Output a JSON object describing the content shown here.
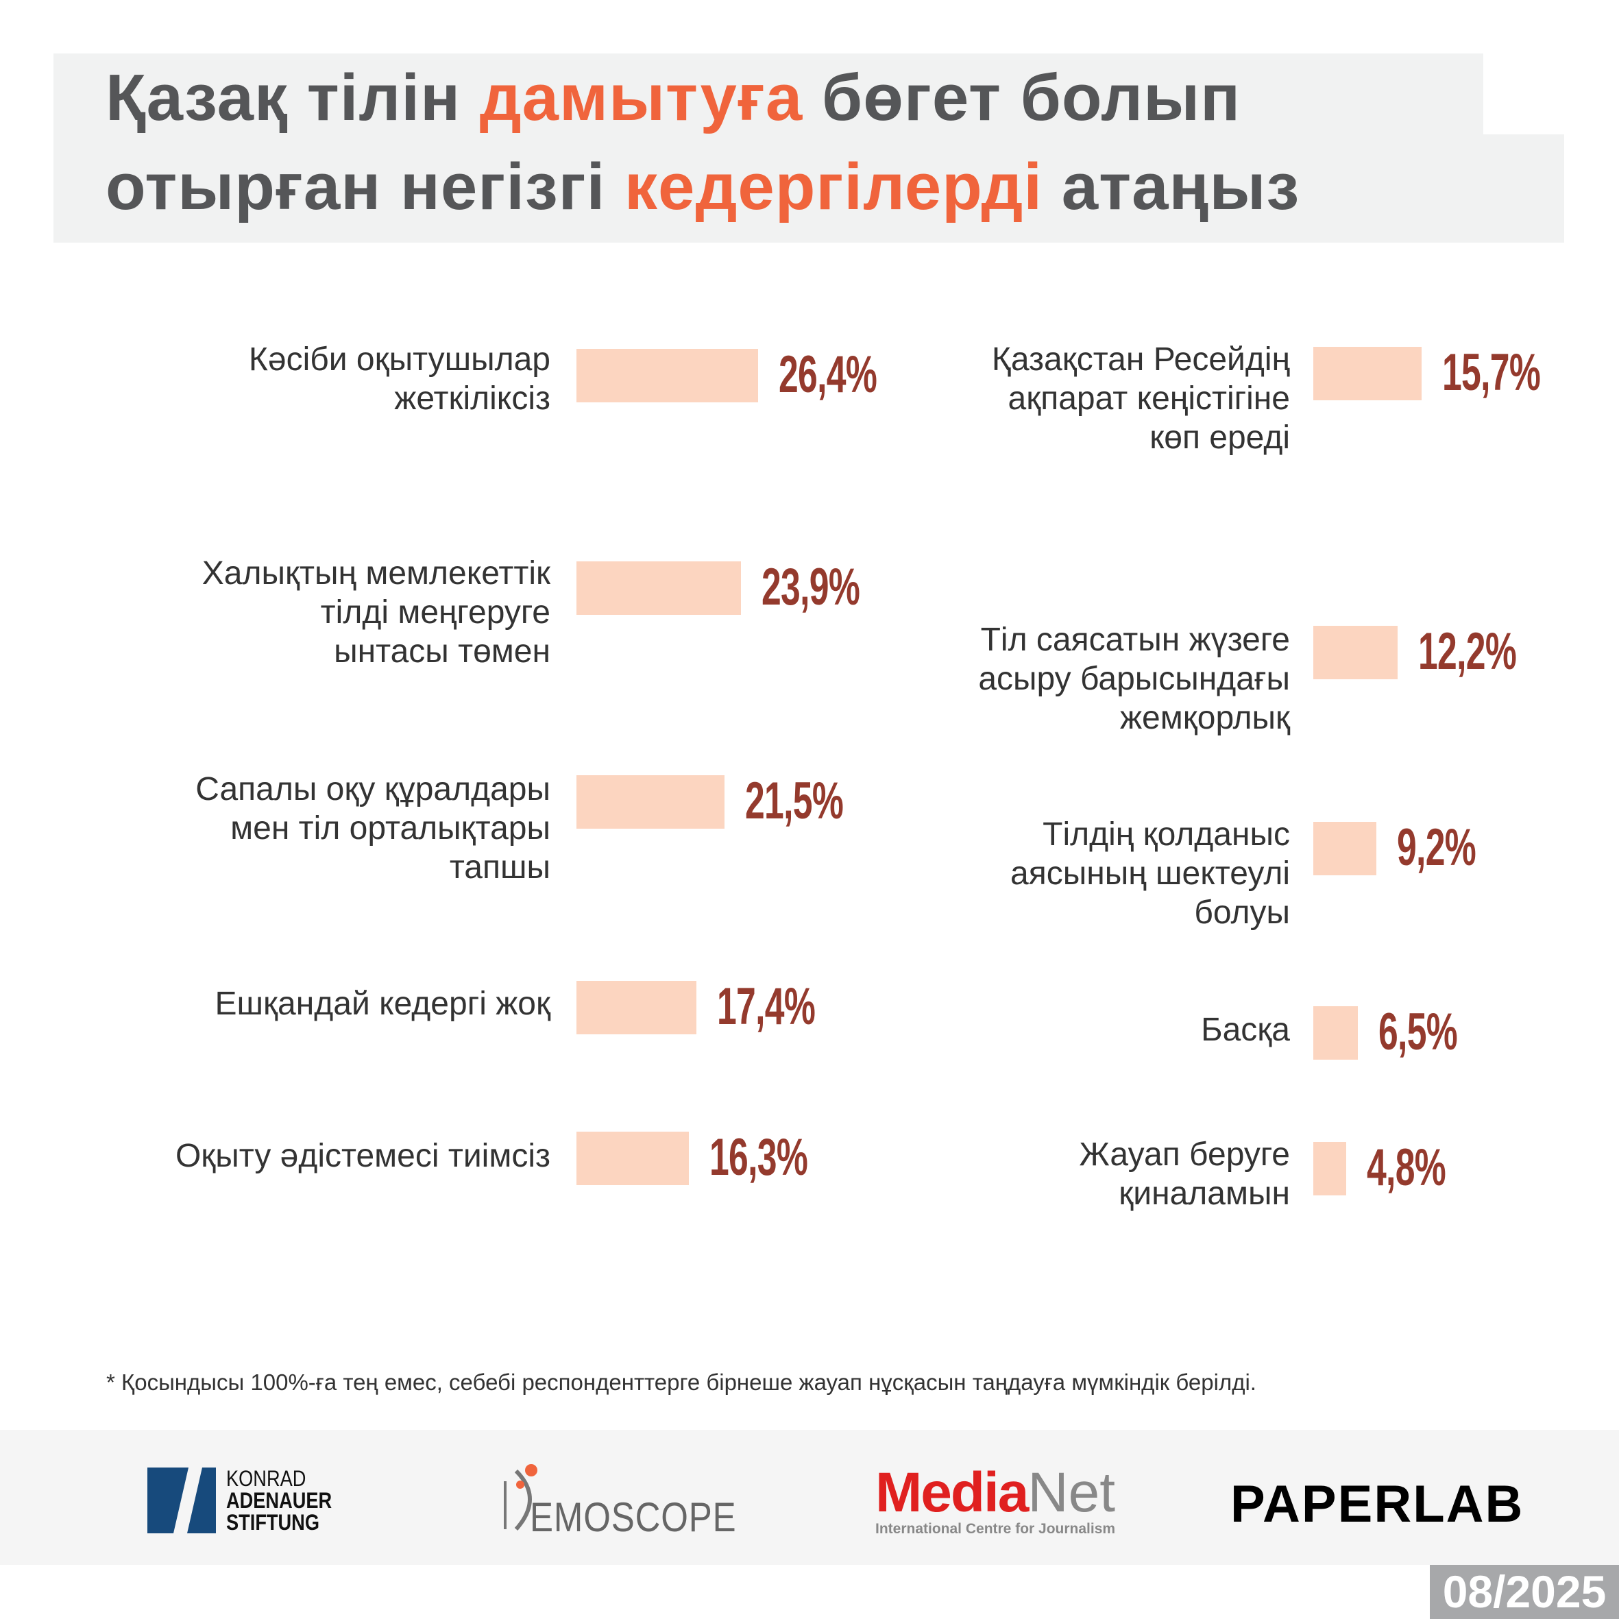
{
  "title": {
    "line1_a": "Қазақ тілін ",
    "line1_hl": "дамытуға",
    "line1_b": " бөгет болып",
    "line2_a": "отырған негізгі ",
    "line2_hl": "кедергілерді",
    "line2_b": " атаңыз"
  },
  "chart_data": {
    "type": "bar",
    "title": "Қазақ тілін дамытуға бөгет болып отырған негізгі кедергілерді атаңыз",
    "unit": "%",
    "left": [
      {
        "label": "Кәсіби оқытушылар\nжеткіліксіз",
        "value": 26.4,
        "display": "26,4%"
      },
      {
        "label": "Халықтың мемлекеттік\nтілді меңгеруге\nынтасы төмен",
        "value": 23.9,
        "display": "23,9%"
      },
      {
        "label": "Сапалы оқу құралдары\nмен тіл орталықтары\nтапшы",
        "value": 21.5,
        "display": "21,5%"
      },
      {
        "label": "Ешқандай кедергі жоқ",
        "value": 17.4,
        "display": "17,4%"
      },
      {
        "label": "Оқыту әдістемесі тиімсіз",
        "value": 16.3,
        "display": "16,3%"
      }
    ],
    "right": [
      {
        "label": "Қазақстан Ресейдің\nақпарат кеңістігіне\nкөп ереді",
        "value": 15.7,
        "display": "15,7%"
      },
      {
        "label": "Тіл саясатын жүзеге\nасыру барысындағы\nжемқорлық",
        "value": 12.2,
        "display": "12,2%"
      },
      {
        "label": "Тілдің қолданыс\nаясының шектеулі\nболуы",
        "value": 9.2,
        "display": "9,2%"
      },
      {
        "label": "Басқа",
        "value": 6.5,
        "display": "6,5%"
      },
      {
        "label": "Жауап беруге\nқиналамын",
        "value": 4.8,
        "display": "4,8%"
      }
    ],
    "colors": {
      "bar": "#fcd5c0",
      "value": "#943a2d"
    }
  },
  "footnote": "* Қосындысы 100%-ға тең емес, себебі респонденттерге бірнеше жауап нұсқасын таңдауға мүмкіндік берілді.",
  "logos": {
    "kas": [
      "KONRAD",
      "ADENAUER",
      "STIFTUNG"
    ],
    "demoscope": "EMOSCOPE",
    "medianet_a": "Media",
    "medianet_b": "Net",
    "medianet_sub": "International Centre for Journalism",
    "paperlab": "PAPERLAB"
  },
  "date": "08/2025"
}
